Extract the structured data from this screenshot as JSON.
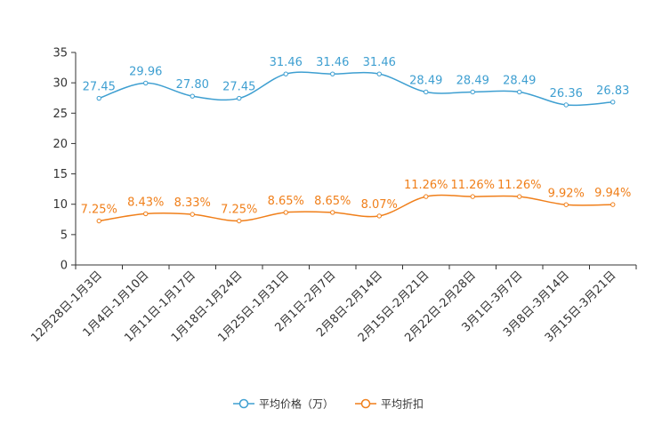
{
  "chart_data": {
    "type": "line",
    "title": "",
    "xlabel": "",
    "ylabel": "",
    "ylim": [
      0,
      35
    ],
    "yticks": [
      0,
      5,
      10,
      15,
      20,
      25,
      30,
      35
    ],
    "grid": false,
    "legend_position": "bottom-center",
    "categories": [
      "12月28日-1月3日",
      "1月4日-1月10日",
      "1月11日-1月17日",
      "1月18日-1月24日",
      "1月25日-1月31日",
      "2月1日-2月7日",
      "2月8日-2月14日",
      "2月15日-2月21日",
      "2月22日-2月28日",
      "3月1日-3月7日",
      "3月8日-3月14日",
      "3月15日-3月21日"
    ],
    "series": [
      {
        "name": "平均价格（万）",
        "color": "#3e9fd1",
        "values": [
          27.45,
          29.96,
          27.8,
          27.45,
          31.46,
          31.46,
          31.46,
          28.49,
          28.49,
          28.49,
          26.36,
          26.83
        ],
        "labels": [
          "27.45",
          "29.96",
          "27.80",
          "27.45",
          "31.46",
          "31.46",
          "31.46",
          "28.49",
          "28.49",
          "28.49",
          "26.36",
          "26.83"
        ]
      },
      {
        "name": "平均折扣",
        "color": "#f07f1a",
        "values": [
          7.25,
          8.43,
          8.33,
          7.25,
          8.65,
          8.65,
          8.07,
          11.26,
          11.26,
          11.26,
          9.92,
          9.94
        ],
        "labels": [
          "7.25%",
          "8.43%",
          "8.33%",
          "7.25%",
          "8.65%",
          "8.65%",
          "8.07%",
          "11.26%",
          "11.26%",
          "11.26%",
          "9.92%",
          "9.94%"
        ]
      }
    ]
  }
}
